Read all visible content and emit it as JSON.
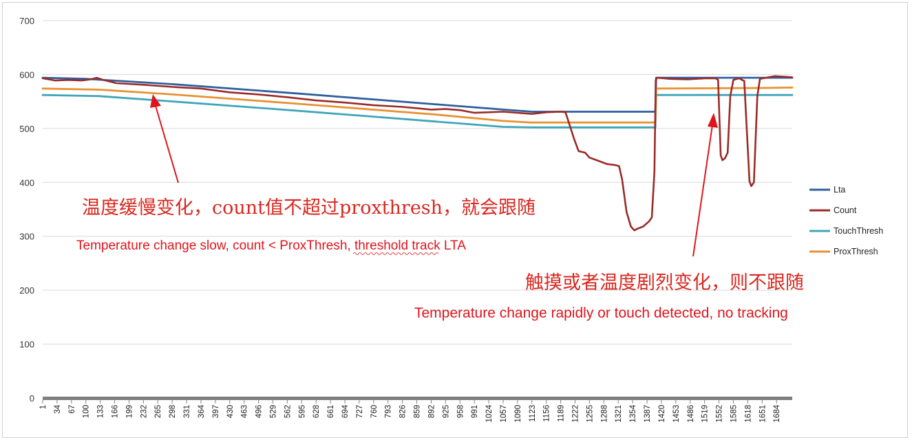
{
  "colors": {
    "lta": "#2f5f9e",
    "count": "#9a2a28",
    "touch": "#3fa5b8",
    "prox": "#e89131",
    "annotation": "#e0141c",
    "grid": "#d9d9d9",
    "axis": "#7f7f7f"
  },
  "annotations": {
    "cn_slow": "温度缓慢变化，count值不超过proxthresh，就会跟随",
    "en_slow": "Temperature change slow, count < ProxThresh, threshold track LTA",
    "cn_fast": "触摸或者温度剧烈变化，则不跟随",
    "en_fast": "Temperature change rapidly or touch detected, no tracking"
  },
  "chart_data": {
    "type": "line",
    "xlabel": "",
    "ylabel": "",
    "title": "",
    "ylim": [
      0,
      700
    ],
    "xlim": [
      1,
      1720
    ],
    "yticks": [
      0,
      100,
      200,
      300,
      400,
      500,
      600,
      700
    ],
    "xticks": [
      1,
      34,
      67,
      100,
      133,
      166,
      199,
      232,
      265,
      298,
      331,
      364,
      397,
      430,
      463,
      496,
      529,
      562,
      595,
      628,
      661,
      694,
      727,
      760,
      793,
      826,
      859,
      892,
      925,
      958,
      991,
      1024,
      1057,
      1090,
      1123,
      1156,
      1189,
      1222,
      1255,
      1288,
      1321,
      1354,
      1387,
      1420,
      1453,
      1486,
      1519,
      1552,
      1585,
      1618,
      1651,
      1684
    ],
    "grid": true,
    "legend_position": "right",
    "series": [
      {
        "name": "Lta",
        "points": [
          [
            1,
            594
          ],
          [
            100,
            592
          ],
          [
            300,
            582
          ],
          [
            600,
            564
          ],
          [
            900,
            545
          ],
          [
            1057,
            535
          ],
          [
            1123,
            531
          ],
          [
            1406,
            531
          ],
          [
            1408,
            594
          ],
          [
            1720,
            594
          ]
        ]
      },
      {
        "name": "Count",
        "points": [
          [
            1,
            593
          ],
          [
            30,
            589
          ],
          [
            60,
            590
          ],
          [
            90,
            589
          ],
          [
            110,
            591
          ],
          [
            125,
            594
          ],
          [
            140,
            590
          ],
          [
            170,
            584
          ],
          [
            232,
            581
          ],
          [
            300,
            577
          ],
          [
            364,
            574
          ],
          [
            430,
            567
          ],
          [
            496,
            563
          ],
          [
            562,
            558
          ],
          [
            628,
            552
          ],
          [
            694,
            548
          ],
          [
            760,
            543
          ],
          [
            826,
            540
          ],
          [
            892,
            535
          ],
          [
            925,
            536
          ],
          [
            958,
            534
          ],
          [
            991,
            529
          ],
          [
            1024,
            530
          ],
          [
            1057,
            531
          ],
          [
            1123,
            527
          ],
          [
            1156,
            530
          ],
          [
            1189,
            531
          ],
          [
            1200,
            530
          ],
          [
            1210,
            505
          ],
          [
            1220,
            480
          ],
          [
            1230,
            458
          ],
          [
            1245,
            455
          ],
          [
            1255,
            446
          ],
          [
            1275,
            440
          ],
          [
            1295,
            434
          ],
          [
            1315,
            432
          ],
          [
            1323,
            430
          ],
          [
            1330,
            405
          ],
          [
            1340,
            345
          ],
          [
            1350,
            318
          ],
          [
            1358,
            311
          ],
          [
            1365,
            314
          ],
          [
            1378,
            318
          ],
          [
            1392,
            328
          ],
          [
            1398,
            335
          ],
          [
            1404,
            420
          ],
          [
            1407,
            590
          ],
          [
            1410,
            594
          ],
          [
            1440,
            592
          ],
          [
            1480,
            591
          ],
          [
            1520,
            593
          ],
          [
            1545,
            593
          ],
          [
            1550,
            590
          ],
          [
            1556,
            450
          ],
          [
            1560,
            441
          ],
          [
            1566,
            445
          ],
          [
            1572,
            455
          ],
          [
            1578,
            560
          ],
          [
            1585,
            590
          ],
          [
            1598,
            593
          ],
          [
            1610,
            588
          ],
          [
            1617,
            480
          ],
          [
            1622,
            402
          ],
          [
            1626,
            393
          ],
          [
            1632,
            400
          ],
          [
            1640,
            560
          ],
          [
            1646,
            592
          ],
          [
            1660,
            594
          ],
          [
            1680,
            597
          ],
          [
            1700,
            596
          ],
          [
            1720,
            595
          ]
        ]
      },
      {
        "name": "TouchThresh",
        "points": [
          [
            1,
            562
          ],
          [
            130,
            560
          ],
          [
            300,
            550
          ],
          [
            600,
            532
          ],
          [
            900,
            513
          ],
          [
            1057,
            503
          ],
          [
            1120,
            502
          ],
          [
            1406,
            502
          ],
          [
            1408,
            562
          ],
          [
            1720,
            562
          ]
        ]
      },
      {
        "name": "ProxThresh",
        "points": [
          [
            1,
            574
          ],
          [
            130,
            572
          ],
          [
            300,
            563
          ],
          [
            600,
            545
          ],
          [
            900,
            526
          ],
          [
            1057,
            514
          ],
          [
            1120,
            511
          ],
          [
            1406,
            511
          ],
          [
            1408,
            574
          ],
          [
            1650,
            575
          ],
          [
            1720,
            576
          ]
        ]
      }
    ]
  }
}
